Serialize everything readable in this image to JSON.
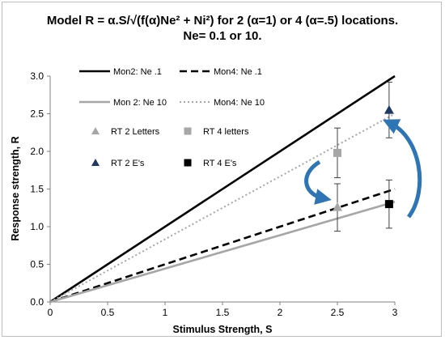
{
  "chart_data": {
    "type": "line",
    "title_line1": "Model R = α.S/√(f(α)Ne² + Ni²)  for 2 (α=1) or 4 (α=.5) locations.",
    "title_line2": "Ne= 0.1 or 10.",
    "xlabel": "Stimulus Strength, S",
    "ylabel": "Response  strength, R",
    "xlim": [
      0,
      3
    ],
    "ylim": [
      0,
      3
    ],
    "x_ticks": [
      "0",
      "0.5",
      "1",
      "1.5",
      "2",
      "2.5",
      "3"
    ],
    "y_ticks": [
      "0.0",
      "0.5",
      "1.0",
      "1.5",
      "2.0",
      "2.5",
      "3.0"
    ],
    "grid": false,
    "lines": [
      {
        "name": "Mon2: Ne .1",
        "style": "solid",
        "color": "#000000",
        "width": 2.6,
        "x": [
          0,
          3
        ],
        "y": [
          0,
          3.0
        ]
      },
      {
        "name": "Mon4: Ne .1",
        "style": "dashed",
        "color": "#000000",
        "width": 2.6,
        "x": [
          0,
          3
        ],
        "y": [
          0,
          1.5
        ]
      },
      {
        "name": "Mon 2: Ne 10",
        "style": "solid",
        "color": "#a6a6a6",
        "width": 2.6,
        "x": [
          0,
          3
        ],
        "y": [
          0,
          1.33
        ]
      },
      {
        "name": "Mon4: Ne 10",
        "style": "dotted",
        "color": "#a6a6a6",
        "width": 2,
        "x": [
          0,
          3
        ],
        "y": [
          0,
          2.5
        ]
      }
    ],
    "points": [
      {
        "name": "RT 2 Letters",
        "marker": "triangle",
        "color": "#a6a6a6",
        "x": 2.5,
        "y": 1.26,
        "err": [
          0.94,
          1.57
        ]
      },
      {
        "name": "RT 4 letters",
        "marker": "square",
        "color": "#a6a6a6",
        "x": 2.5,
        "y": 1.98,
        "err": [
          1.65,
          2.31
        ]
      },
      {
        "name": "RT 2 E's",
        "marker": "triangle",
        "color": "#1f3864",
        "x": 2.95,
        "y": 2.55,
        "err": [
          2.18,
          2.92
        ]
      },
      {
        "name": "RT 4 E's",
        "marker": "square",
        "color": "#000000",
        "x": 2.95,
        "y": 1.3,
        "err": [
          0.98,
          1.62
        ]
      }
    ],
    "arrow_color": "#2e75b6"
  }
}
